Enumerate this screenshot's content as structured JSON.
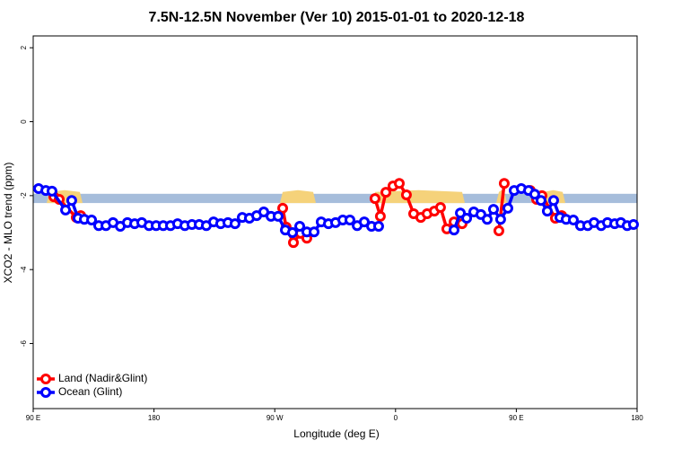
{
  "chart_data": {
    "type": "line",
    "title": "7.5N-12.5N November (Ver 10)   2015-01-01 to 2020-12-18",
    "x_label": "Longitude (deg E)",
    "y_label": "XCO2 - MLO trend (ppm)",
    "xlim": [
      90,
      540
    ],
    "ylim": [
      -7.76,
      2.32
    ],
    "xticks": [
      {
        "value": 90,
        "label": "90 E"
      },
      {
        "value": 180,
        "label": "180"
      },
      {
        "value": 270,
        "label": "90 W"
      },
      {
        "value": 360,
        "label": "0"
      },
      {
        "value": 450,
        "label": "90 E"
      },
      {
        "value": 540,
        "label": "180"
      }
    ],
    "yticks": [
      -6,
      -4,
      -2,
      0,
      2
    ],
    "band": [
      -2.2,
      -1.95
    ],
    "band_color": "#a6bddb",
    "legend": "bottomleft",
    "series": [
      {
        "name": "Land (Nadir&Glint)",
        "color": "#ff0000",
        "x": [
          105.4,
          109.4,
          122.1,
          125.4,
          null,
          275.9,
          278.5,
          283.9,
          289.2,
          293.9,
          null,
          344.7,
          348.7,
          352.8,
          358.1,
          362.8,
          368.1,
          373.5,
          378.8,
          383.5,
          388.9,
          393.5,
          398.2,
          403.6,
          409.6,
          null,
          437.0,
          441.0,
          null,
          460.4,
          465.1,
          469.1,
          479.1,
          483.8
        ],
        "values": [
          -2.03,
          -2.1,
          -2.59,
          -2.54,
          null,
          -2.34,
          -2.85,
          -3.27,
          -3.02,
          -3.15,
          null,
          -2.08,
          -2.56,
          -1.91,
          -1.74,
          -1.67,
          -1.98,
          -2.49,
          -2.59,
          -2.49,
          -2.42,
          -2.32,
          -2.9,
          -2.71,
          -2.76,
          null,
          -2.95,
          -1.67,
          null,
          -1.86,
          -2.1,
          -2.0,
          -2.61,
          -2.54
        ]
      },
      {
        "name": "Ocean (Glint)",
        "color": "#0000ff",
        "x": [
          94.0,
          99.4,
          104.0,
          114.1,
          118.7,
          123.4,
          128.1,
          133.5,
          138.8,
          144.2,
          149.5,
          154.9,
          160.2,
          165.6,
          170.9,
          176.3,
          181.6,
          186.9,
          192.3,
          197.6,
          203.0,
          208.3,
          213.7,
          219.0,
          224.4,
          229.7,
          235.1,
          240.4,
          245.8,
          251.1,
          256.5,
          261.8,
          267.2,
          272.5,
          277.9,
          283.2,
          288.6,
          293.9,
          299.3,
          304.6,
          310.0,
          315.3,
          320.7,
          326.0,
          331.4,
          336.7,
          342.1,
          347.4,
          null,
          403.6,
          408.3,
          413.0,
          418.3,
          423.6,
          428.3,
          433.0,
          438.3,
          443.7,
          448.4,
          453.7,
          459.1,
          463.7,
          468.4,
          473.1,
          477.8,
          482.5,
          487.1,
          492.5,
          497.8,
          503.2,
          507.9,
          513.2,
          517.9,
          523.3,
          527.9,
          532.6,
          537.3
        ],
        "values": [
          -1.81,
          -1.86,
          -1.88,
          -2.39,
          -2.13,
          -2.61,
          -2.64,
          -2.66,
          -2.81,
          -2.81,
          -2.73,
          -2.83,
          -2.73,
          -2.76,
          -2.73,
          -2.81,
          -2.81,
          -2.81,
          -2.81,
          -2.76,
          -2.81,
          -2.78,
          -2.78,
          -2.81,
          -2.71,
          -2.76,
          -2.73,
          -2.76,
          -2.59,
          -2.61,
          -2.54,
          -2.44,
          -2.56,
          -2.56,
          -2.93,
          -3.0,
          -2.83,
          -2.98,
          -2.98,
          -2.71,
          -2.76,
          -2.73,
          -2.66,
          -2.66,
          -2.81,
          -2.71,
          -2.83,
          -2.83,
          null,
          -2.93,
          -2.47,
          -2.61,
          -2.44,
          -2.51,
          -2.64,
          -2.37,
          -2.64,
          -2.34,
          -1.86,
          -1.81,
          -1.86,
          -1.96,
          -2.13,
          -2.42,
          -2.13,
          -2.59,
          -2.64,
          -2.66,
          -2.81,
          -2.81,
          -2.73,
          -2.81,
          -2.73,
          -2.76,
          -2.73,
          -2.81,
          -2.78
        ]
      }
    ]
  }
}
